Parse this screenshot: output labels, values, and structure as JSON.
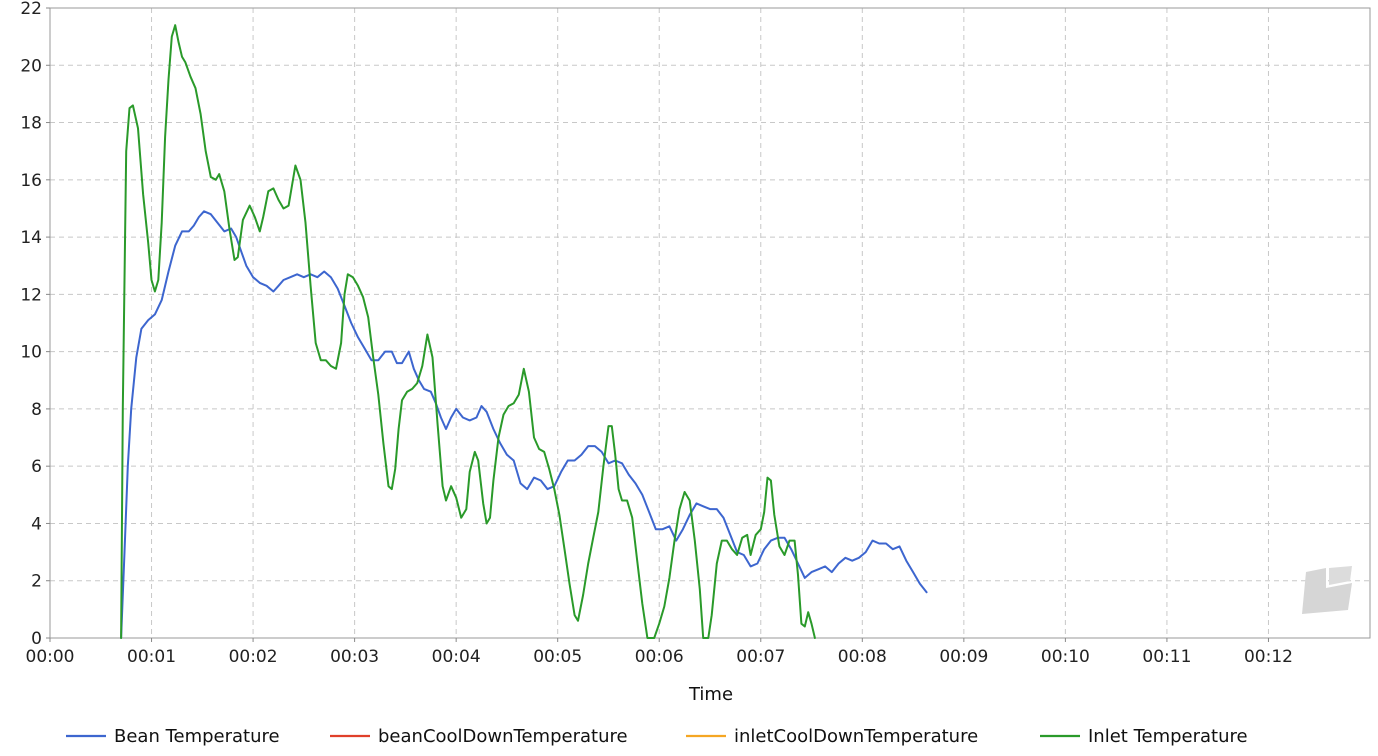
{
  "chart_data": {
    "type": "line",
    "title": "",
    "xlabel": "Time",
    "ylabel": "",
    "xlim": [
      0,
      780
    ],
    "ylim": [
      0,
      22
    ],
    "x_ticks": [
      {
        "value": 0,
        "label": "00:00"
      },
      {
        "value": 60,
        "label": "00:01"
      },
      {
        "value": 120,
        "label": "00:02"
      },
      {
        "value": 180,
        "label": "00:03"
      },
      {
        "value": 240,
        "label": "00:04"
      },
      {
        "value": 300,
        "label": "00:05"
      },
      {
        "value": 360,
        "label": "00:06"
      },
      {
        "value": 420,
        "label": "00:07"
      },
      {
        "value": 480,
        "label": "00:08"
      },
      {
        "value": 540,
        "label": "00:09"
      },
      {
        "value": 600,
        "label": "00:10"
      },
      {
        "value": 660,
        "label": "00:11"
      },
      {
        "value": 720,
        "label": "00:12"
      }
    ],
    "y_ticks": [
      {
        "value": 0,
        "label": "0"
      },
      {
        "value": 2,
        "label": "2"
      },
      {
        "value": 4,
        "label": "4"
      },
      {
        "value": 6,
        "label": "6"
      },
      {
        "value": 8,
        "label": "8"
      },
      {
        "value": 10,
        "label": "10"
      },
      {
        "value": 12,
        "label": "12"
      },
      {
        "value": 14,
        "label": "14"
      },
      {
        "value": 16,
        "label": "16"
      },
      {
        "value": 18,
        "label": "18"
      },
      {
        "value": 20,
        "label": "20"
      },
      {
        "value": 22,
        "label": "22"
      }
    ],
    "grid": true,
    "legend_position": "bottom",
    "series": [
      {
        "name": "Bean Temperature",
        "color": "#3d66cf",
        "points": [
          [
            42,
            0
          ],
          [
            44,
            3
          ],
          [
            46,
            6
          ],
          [
            48,
            8
          ],
          [
            51,
            9.8
          ],
          [
            54,
            10.8
          ],
          [
            58,
            11.1
          ],
          [
            62,
            11.3
          ],
          [
            66,
            11.8
          ],
          [
            70,
            12.8
          ],
          [
            74,
            13.7
          ],
          [
            78,
            14.2
          ],
          [
            82,
            14.2
          ],
          [
            85,
            14.4
          ],
          [
            88,
            14.7
          ],
          [
            91,
            14.9
          ],
          [
            95,
            14.8
          ],
          [
            99,
            14.5
          ],
          [
            103,
            14.2
          ],
          [
            107,
            14.3
          ],
          [
            110,
            14
          ],
          [
            113,
            13.5
          ],
          [
            116,
            13
          ],
          [
            120,
            12.6
          ],
          [
            124,
            12.4
          ],
          [
            128,
            12.3
          ],
          [
            132,
            12.1
          ],
          [
            135,
            12.3
          ],
          [
            138,
            12.5
          ],
          [
            142,
            12.6
          ],
          [
            146,
            12.7
          ],
          [
            150,
            12.6
          ],
          [
            154,
            12.7
          ],
          [
            158,
            12.6
          ],
          [
            162,
            12.8
          ],
          [
            166,
            12.6
          ],
          [
            170,
            12.2
          ],
          [
            174,
            11.6
          ],
          [
            178,
            11
          ],
          [
            182,
            10.5
          ],
          [
            186,
            10.1
          ],
          [
            190,
            9.7
          ],
          [
            194,
            9.7
          ],
          [
            198,
            10
          ],
          [
            202,
            10
          ],
          [
            205,
            9.6
          ],
          [
            208,
            9.6
          ],
          [
            212,
            10
          ],
          [
            215,
            9.4
          ],
          [
            218,
            9
          ],
          [
            221,
            8.7
          ],
          [
            225,
            8.6
          ],
          [
            228,
            8.2
          ],
          [
            231,
            7.7
          ],
          [
            234,
            7.3
          ],
          [
            237,
            7.7
          ],
          [
            240,
            8
          ],
          [
            244,
            7.7
          ],
          [
            248,
            7.6
          ],
          [
            252,
            7.7
          ],
          [
            255,
            8.1
          ],
          [
            258,
            7.9
          ],
          [
            262,
            7.3
          ],
          [
            266,
            6.8
          ],
          [
            270,
            6.4
          ],
          [
            274,
            6.2
          ],
          [
            278,
            5.4
          ],
          [
            282,
            5.2
          ],
          [
            286,
            5.6
          ],
          [
            290,
            5.5
          ],
          [
            294,
            5.2
          ],
          [
            298,
            5.3
          ],
          [
            302,
            5.8
          ],
          [
            306,
            6.2
          ],
          [
            310,
            6.2
          ],
          [
            314,
            6.4
          ],
          [
            318,
            6.7
          ],
          [
            322,
            6.7
          ],
          [
            326,
            6.5
          ],
          [
            330,
            6.1
          ],
          [
            334,
            6.2
          ],
          [
            338,
            6.1
          ],
          [
            342,
            5.7
          ],
          [
            346,
            5.4
          ],
          [
            350,
            5
          ],
          [
            354,
            4.4
          ],
          [
            358,
            3.8
          ],
          [
            362,
            3.8
          ],
          [
            366,
            3.9
          ],
          [
            370,
            3.4
          ],
          [
            374,
            3.8
          ],
          [
            378,
            4.3
          ],
          [
            382,
            4.7
          ],
          [
            386,
            4.6
          ],
          [
            390,
            4.5
          ],
          [
            394,
            4.5
          ],
          [
            398,
            4.2
          ],
          [
            402,
            3.6
          ],
          [
            406,
            3
          ],
          [
            410,
            2.9
          ],
          [
            414,
            2.5
          ],
          [
            418,
            2.6
          ],
          [
            422,
            3.1
          ],
          [
            426,
            3.4
          ],
          [
            430,
            3.5
          ],
          [
            434,
            3.5
          ],
          [
            438,
            3.1
          ],
          [
            442,
            2.6
          ],
          [
            446,
            2.1
          ],
          [
            450,
            2.3
          ],
          [
            454,
            2.4
          ],
          [
            458,
            2.5
          ],
          [
            462,
            2.3
          ],
          [
            466,
            2.6
          ],
          [
            470,
            2.8
          ],
          [
            474,
            2.7
          ],
          [
            478,
            2.8
          ],
          [
            482,
            3
          ],
          [
            486,
            3.4
          ],
          [
            490,
            3.3
          ],
          [
            494,
            3.3
          ],
          [
            498,
            3.1
          ],
          [
            502,
            3.2
          ],
          [
            506,
            2.7
          ],
          [
            510,
            2.3
          ],
          [
            514,
            1.9
          ],
          [
            518,
            1.6
          ]
        ]
      },
      {
        "name": "beanCoolDownTemperature",
        "color": "#e0402a",
        "points": []
      },
      {
        "name": "inletCoolDownTemperature",
        "color": "#f5a623",
        "points": []
      },
      {
        "name": "Inlet Temperature",
        "color": "#2a9a2a",
        "points": [
          [
            42,
            0
          ],
          [
            43,
            8
          ],
          [
            45,
            17
          ],
          [
            47,
            18.5
          ],
          [
            49,
            18.6
          ],
          [
            52,
            17.8
          ],
          [
            55,
            15.5
          ],
          [
            58,
            13.8
          ],
          [
            60,
            12.5
          ],
          [
            62,
            12.1
          ],
          [
            64,
            12.5
          ],
          [
            66,
            14.5
          ],
          [
            68,
            17.5
          ],
          [
            70,
            19.5
          ],
          [
            72,
            21
          ],
          [
            74,
            21.4
          ],
          [
            76,
            20.8
          ],
          [
            78,
            20.3
          ],
          [
            80,
            20.1
          ],
          [
            83,
            19.6
          ],
          [
            86,
            19.2
          ],
          [
            89,
            18.3
          ],
          [
            92,
            17
          ],
          [
            95,
            16.1
          ],
          [
            98,
            16
          ],
          [
            100,
            16.2
          ],
          [
            103,
            15.6
          ],
          [
            106,
            14.3
          ],
          [
            109,
            13.2
          ],
          [
            111,
            13.3
          ],
          [
            114,
            14.6
          ],
          [
            118,
            15.1
          ],
          [
            121,
            14.7
          ],
          [
            124,
            14.2
          ],
          [
            126,
            14.7
          ],
          [
            129,
            15.6
          ],
          [
            132,
            15.7
          ],
          [
            135,
            15.3
          ],
          [
            138,
            15
          ],
          [
            141,
            15.1
          ],
          [
            143,
            15.8
          ],
          [
            145,
            16.5
          ],
          [
            148,
            16
          ],
          [
            151,
            14.5
          ],
          [
            154,
            12.3
          ],
          [
            157,
            10.3
          ],
          [
            160,
            9.7
          ],
          [
            163,
            9.7
          ],
          [
            166,
            9.5
          ],
          [
            169,
            9.4
          ],
          [
            172,
            10.3
          ],
          [
            174,
            12
          ],
          [
            176,
            12.7
          ],
          [
            179,
            12.6
          ],
          [
            182,
            12.3
          ],
          [
            185,
            11.9
          ],
          [
            188,
            11.2
          ],
          [
            191,
            9.8
          ],
          [
            194,
            8.5
          ],
          [
            197,
            6.8
          ],
          [
            200,
            5.3
          ],
          [
            202,
            5.2
          ],
          [
            204,
            5.9
          ],
          [
            206,
            7.3
          ],
          [
            208,
            8.3
          ],
          [
            211,
            8.6
          ],
          [
            214,
            8.7
          ],
          [
            217,
            8.9
          ],
          [
            220,
            9.5
          ],
          [
            223,
            10.6
          ],
          [
            226,
            9.8
          ],
          [
            229,
            7.5
          ],
          [
            232,
            5.3
          ],
          [
            234,
            4.8
          ],
          [
            237,
            5.3
          ],
          [
            240,
            4.9
          ],
          [
            243,
            4.2
          ],
          [
            246,
            4.5
          ],
          [
            248,
            5.8
          ],
          [
            251,
            6.5
          ],
          [
            253,
            6.2
          ],
          [
            256,
            4.7
          ],
          [
            258,
            4
          ],
          [
            260,
            4.2
          ],
          [
            262,
            5.5
          ],
          [
            265,
            7
          ],
          [
            268,
            7.8
          ],
          [
            271,
            8.1
          ],
          [
            274,
            8.2
          ],
          [
            277,
            8.5
          ],
          [
            280,
            9.4
          ],
          [
            283,
            8.6
          ],
          [
            286,
            7
          ],
          [
            289,
            6.6
          ],
          [
            292,
            6.5
          ],
          [
            295,
            5.9
          ],
          [
            298,
            5.2
          ],
          [
            301,
            4.3
          ],
          [
            304,
            3.1
          ],
          [
            307,
            1.9
          ],
          [
            310,
            0.8
          ],
          [
            312,
            0.6
          ],
          [
            315,
            1.5
          ],
          [
            318,
            2.6
          ],
          [
            321,
            3.5
          ],
          [
            324,
            4.4
          ],
          [
            327,
            6
          ],
          [
            330,
            7.4
          ],
          [
            332,
            7.4
          ],
          [
            334,
            6.4
          ],
          [
            336,
            5.2
          ],
          [
            338,
            4.8
          ],
          [
            341,
            4.8
          ],
          [
            344,
            4.2
          ],
          [
            347,
            2.7
          ],
          [
            350,
            1.2
          ],
          [
            353,
            0
          ],
          [
            357,
            0
          ],
          [
            360,
            0.5
          ],
          [
            363,
            1.1
          ],
          [
            366,
            2.1
          ],
          [
            369,
            3.4
          ],
          [
            372,
            4.5
          ],
          [
            375,
            5.1
          ],
          [
            378,
            4.8
          ],
          [
            381,
            3.4
          ],
          [
            384,
            1.7
          ],
          [
            386,
            0
          ],
          [
            389,
            0
          ],
          [
            391,
            0.8
          ],
          [
            394,
            2.6
          ],
          [
            397,
            3.4
          ],
          [
            400,
            3.4
          ],
          [
            403,
            3.1
          ],
          [
            406,
            2.9
          ],
          [
            409,
            3.5
          ],
          [
            412,
            3.6
          ],
          [
            414,
            2.9
          ],
          [
            417,
            3.6
          ],
          [
            420,
            3.8
          ],
          [
            422,
            4.4
          ],
          [
            424,
            5.6
          ],
          [
            426,
            5.5
          ],
          [
            428,
            4.3
          ],
          [
            431,
            3.2
          ],
          [
            434,
            2.9
          ],
          [
            437,
            3.4
          ],
          [
            440,
            3.4
          ],
          [
            442,
            2.2
          ],
          [
            444,
            0.5
          ],
          [
            446,
            0.4
          ],
          [
            448,
            0.9
          ],
          [
            450,
            0.5
          ],
          [
            452,
            0
          ]
        ]
      }
    ]
  }
}
